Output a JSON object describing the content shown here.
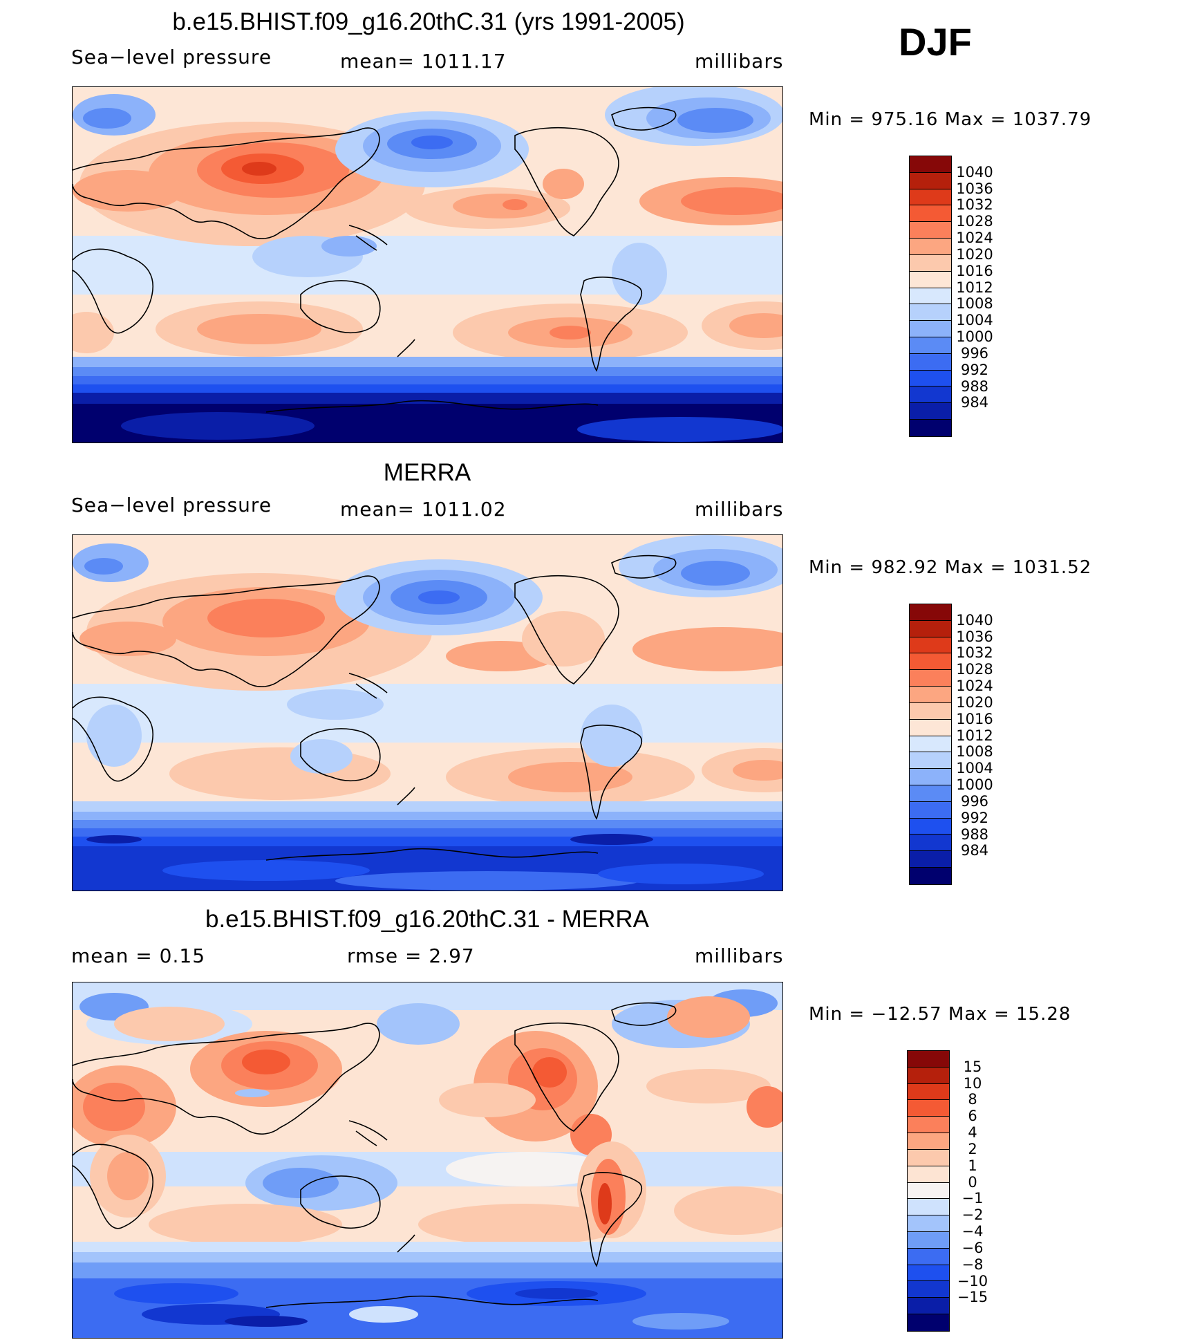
{
  "season": "DJF",
  "colors": {
    "pressure_scale": [
      "#00006e",
      "#0a1ea8",
      "#1237d0",
      "#1e50ef",
      "#3c6cf2",
      "#5b8bf5",
      "#8cb2fa",
      "#b6d1fc",
      "#d8e8fd",
      "#fde6d6",
      "#fcc9ad",
      "#fca681",
      "#fb805b",
      "#f45a34",
      "#de3a1a",
      "#b5200c",
      "#860808"
    ],
    "diff_scale": [
      "#00006e",
      "#0a1ea8",
      "#1237d0",
      "#1e50ef",
      "#3c6cf2",
      "#6f9df7",
      "#a3c4fb",
      "#cfe2fd",
      "#f6f3f2",
      "#fde4d3",
      "#fcc9ad",
      "#fca681",
      "#fb805b",
      "#f45a34",
      "#de3a1a",
      "#b5200c",
      "#860808"
    ]
  },
  "panels": [
    {
      "title": "b.e15.BHIST.f09_g16.20thC.31 (yrs 1991-2005)",
      "left": "Sea−level pressure",
      "center": "mean=  1011.17",
      "right": "millibars",
      "minmax": "Min  =  975.16  Max  =  1037.79",
      "colorbar_labels": [
        "1040",
        "1036",
        "1032",
        "1028",
        "1024",
        "1020",
        "1016",
        "1012",
        "1008",
        "1004",
        "1000",
        "996",
        "992",
        "988",
        "984"
      ],
      "kind": "model"
    },
    {
      "title": "MERRA",
      "left": "Sea−level pressure",
      "center": "mean=  1011.02",
      "right": "millibars",
      "minmax": "Min  =  982.92  Max  =  1031.52",
      "colorbar_labels": [
        "1040",
        "1036",
        "1032",
        "1028",
        "1024",
        "1020",
        "1016",
        "1012",
        "1008",
        "1004",
        "1000",
        "996",
        "992",
        "988",
        "984"
      ],
      "kind": "obs"
    },
    {
      "title": "b.e15.BHIST.f09_g16.20thC.31 - MERRA",
      "left": "mean  =      0.15",
      "center": "rmse  =      2.97",
      "right": "millibars",
      "minmax": "Min  =  −12.57  Max  =     15.28",
      "colorbar_labels": [
        "15",
        "10",
        "8",
        "6",
        "4",
        "2",
        "1",
        "0",
        "−1",
        "−2",
        "−4",
        "−6",
        "−8",
        "−10",
        "−15"
      ],
      "kind": "diff"
    }
  ]
}
